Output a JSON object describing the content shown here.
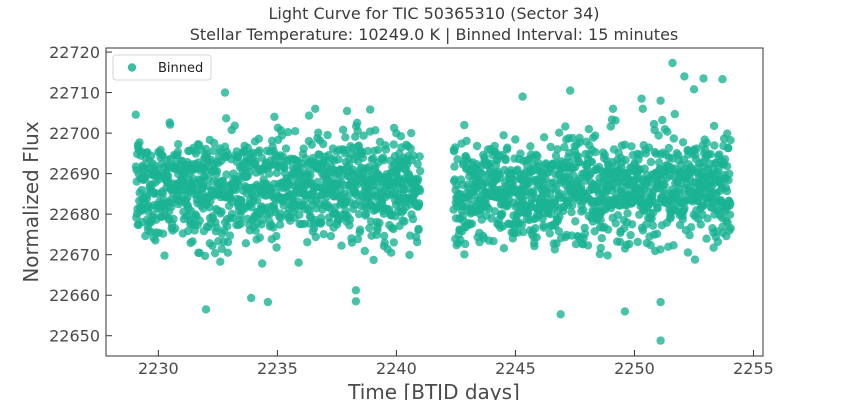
{
  "chart_data": {
    "type": "scatter",
    "title": "Light Curve for TIC 50365310 (Sector 34)",
    "subtitle": "Stellar Temperature: 10249.0 K | Binned Interval: 15 minutes",
    "xlabel": "Time [BTJD days]",
    "ylabel": "Normalized Flux",
    "xlim": [
      2227.8,
      2255.4
    ],
    "ylim": [
      22645,
      22721
    ],
    "x_ticks": [
      2230,
      2235,
      2240,
      2245,
      2250,
      2255
    ],
    "y_ticks": [
      22650,
      22660,
      22670,
      22680,
      22690,
      22700,
      22710,
      22720
    ],
    "x_tick_labels": [
      "2230",
      "2235",
      "2240",
      "2245",
      "2250",
      "2255"
    ],
    "y_tick_labels": [
      "22650",
      "22660",
      "22670",
      "22680",
      "22690",
      "22700",
      "22710",
      "22720"
    ],
    "grid": false,
    "legend": {
      "position": "top-left",
      "entries": [
        "Binned"
      ]
    },
    "series": [
      {
        "name": "Binned",
        "color": "#1ab394",
        "segments": [
          {
            "x_start": 2229.05,
            "x_end": 2241.0,
            "median": 22686.5,
            "spread": 6.5
          },
          {
            "x_start": 2242.4,
            "x_end": 2254.05,
            "median": 22686.0,
            "spread": 6.5
          }
        ],
        "outliers": [
          {
            "x": 2232.8,
            "y": 22710
          },
          {
            "x": 2232.0,
            "y": 22656.5
          },
          {
            "x": 2234.6,
            "y": 22658.3
          },
          {
            "x": 2233.9,
            "y": 22659.3
          },
          {
            "x": 2238.3,
            "y": 22658.5
          },
          {
            "x": 2238.3,
            "y": 22661.2
          },
          {
            "x": 2238.9,
            "y": 22705.8
          },
          {
            "x": 2251.1,
            "y": 22648.8
          },
          {
            "x": 2251.6,
            "y": 22717.3
          },
          {
            "x": 2252.1,
            "y": 22714.0
          },
          {
            "x": 2252.9,
            "y": 22713.5
          },
          {
            "x": 2253.7,
            "y": 22713.3
          },
          {
            "x": 2252.5,
            "y": 22710.8
          },
          {
            "x": 2247.3,
            "y": 22710.5
          },
          {
            "x": 2245.3,
            "y": 22709.0
          },
          {
            "x": 2246.9,
            "y": 22655.3
          },
          {
            "x": 2249.6,
            "y": 22656.0
          },
          {
            "x": 2251.1,
            "y": 22658.3
          },
          {
            "x": 2250.3,
            "y": 22708.5
          },
          {
            "x": 2251.1,
            "y": 22708.0
          }
        ]
      }
    ]
  }
}
